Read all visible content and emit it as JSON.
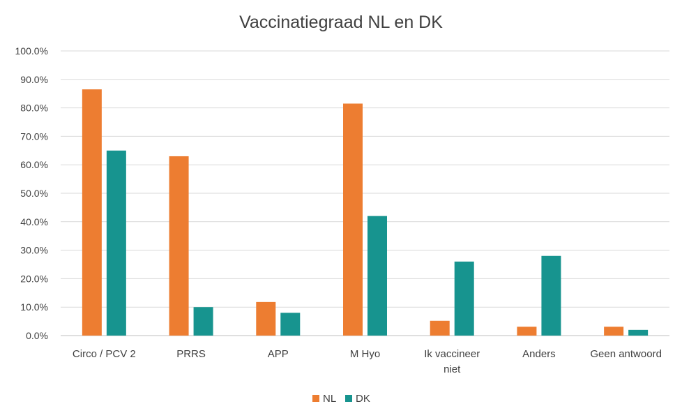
{
  "chart_data": {
    "type": "bar",
    "title": "Vaccinatiegraad NL en DK",
    "categories": [
      "Circo / PCV 2",
      "PRRS",
      "APP",
      "M Hyo",
      "Ik vaccineer niet",
      "Anders",
      "Geen antwoord"
    ],
    "series": [
      {
        "name": "NL",
        "color": "#ed7d31",
        "values": [
          86.5,
          63.0,
          11.8,
          81.5,
          5.2,
          3.1,
          3.1
        ]
      },
      {
        "name": "DK",
        "color": "#17948f",
        "values": [
          65.0,
          10.0,
          8.0,
          42.0,
          26.0,
          28.0,
          2.0
        ]
      }
    ],
    "yticks": [
      "0.0%",
      "10.0%",
      "20.0%",
      "30.0%",
      "40.0%",
      "50.0%",
      "60.0%",
      "70.0%",
      "80.0%",
      "90.0%",
      "100.0%"
    ],
    "ylim": [
      0,
      100
    ],
    "grid": true,
    "legend_position": "bottom"
  }
}
